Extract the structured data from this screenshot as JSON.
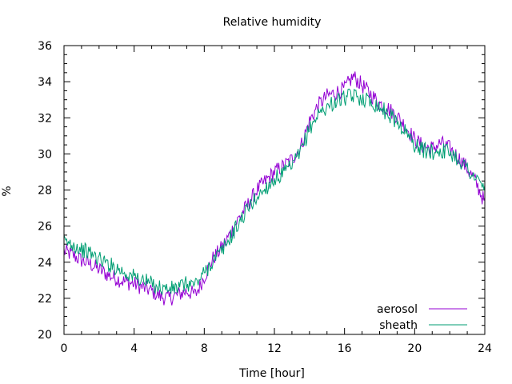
{
  "chart_data": {
    "type": "line",
    "title": "Relative humidity",
    "xlabel": "Time [hour]",
    "ylabel": "%",
    "xlim": [
      0,
      24
    ],
    "ylim": [
      20,
      36
    ],
    "xticks": [
      0,
      4,
      8,
      12,
      16,
      20,
      24
    ],
    "yticks": [
      20,
      22,
      24,
      26,
      28,
      30,
      32,
      34,
      36
    ],
    "x_minor_step": 1,
    "y_minor_step": 0.5,
    "grid": false,
    "legend_position": "bottom-right",
    "series": [
      {
        "name": "aerosol",
        "color": "#9400d3",
        "points": [
          [
            0.0,
            24.6
          ],
          [
            0.5,
            24.4
          ],
          [
            1.0,
            24.1
          ],
          [
            1.5,
            23.9
          ],
          [
            2.0,
            23.6
          ],
          [
            2.5,
            23.3
          ],
          [
            3.0,
            23.1
          ],
          [
            3.5,
            22.9
          ],
          [
            4.0,
            22.8
          ],
          [
            4.5,
            22.6
          ],
          [
            5.0,
            22.4
          ],
          [
            5.5,
            22.1
          ],
          [
            6.0,
            22.0
          ],
          [
            6.5,
            22.2
          ],
          [
            7.0,
            22.4
          ],
          [
            7.5,
            22.2
          ],
          [
            8.0,
            23.2
          ],
          [
            8.5,
            24.2
          ],
          [
            9.0,
            24.8
          ],
          [
            9.5,
            25.6
          ],
          [
            10.0,
            26.5
          ],
          [
            10.5,
            27.2
          ],
          [
            11.0,
            28.0
          ],
          [
            11.5,
            28.5
          ],
          [
            12.0,
            29.0
          ],
          [
            12.5,
            29.3
          ],
          [
            13.0,
            29.7
          ],
          [
            13.5,
            30.4
          ],
          [
            14.0,
            31.8
          ],
          [
            14.5,
            32.7
          ],
          [
            15.0,
            33.2
          ],
          [
            15.5,
            33.4
          ],
          [
            16.0,
            33.6
          ],
          [
            16.5,
            34.3
          ],
          [
            17.0,
            33.8
          ],
          [
            17.5,
            33.3
          ],
          [
            18.0,
            32.8
          ],
          [
            18.5,
            32.5
          ],
          [
            19.0,
            32.1
          ],
          [
            19.5,
            31.5
          ],
          [
            20.0,
            30.8
          ],
          [
            20.5,
            30.4
          ],
          [
            21.0,
            30.3
          ],
          [
            21.5,
            30.6
          ],
          [
            22.0,
            30.3
          ],
          [
            22.5,
            29.8
          ],
          [
            23.0,
            29.2
          ],
          [
            23.5,
            28.4
          ],
          [
            24.0,
            27.3
          ]
        ]
      },
      {
        "name": "sheath",
        "color": "#009e73",
        "points": [
          [
            0.0,
            25.1
          ],
          [
            0.5,
            25.0
          ],
          [
            1.0,
            24.7
          ],
          [
            1.5,
            24.5
          ],
          [
            2.0,
            24.2
          ],
          [
            2.5,
            23.9
          ],
          [
            3.0,
            23.7
          ],
          [
            3.5,
            23.4
          ],
          [
            4.0,
            23.2
          ],
          [
            4.5,
            23.0
          ],
          [
            5.0,
            22.8
          ],
          [
            5.5,
            22.6
          ],
          [
            6.0,
            22.5
          ],
          [
            6.5,
            22.6
          ],
          [
            7.0,
            22.8
          ],
          [
            7.5,
            22.8
          ],
          [
            8.0,
            23.4
          ],
          [
            8.5,
            24.1
          ],
          [
            9.0,
            24.6
          ],
          [
            9.5,
            25.4
          ],
          [
            10.0,
            26.2
          ],
          [
            10.5,
            27.0
          ],
          [
            11.0,
            27.6
          ],
          [
            11.5,
            28.1
          ],
          [
            12.0,
            28.6
          ],
          [
            12.5,
            28.9
          ],
          [
            13.0,
            29.3
          ],
          [
            13.5,
            30.1
          ],
          [
            14.0,
            31.4
          ],
          [
            14.5,
            32.2
          ],
          [
            15.0,
            32.6
          ],
          [
            15.5,
            32.9
          ],
          [
            16.0,
            33.1
          ],
          [
            16.5,
            33.2
          ],
          [
            17.0,
            33.1
          ],
          [
            17.5,
            32.9
          ],
          [
            18.0,
            32.6
          ],
          [
            18.5,
            32.2
          ],
          [
            19.0,
            31.8
          ],
          [
            19.5,
            31.2
          ],
          [
            20.0,
            30.5
          ],
          [
            20.5,
            30.2
          ],
          [
            21.0,
            30.1
          ],
          [
            21.5,
            30.2
          ],
          [
            22.0,
            30.1
          ],
          [
            22.5,
            29.7
          ],
          [
            23.0,
            29.2
          ],
          [
            23.5,
            28.6
          ],
          [
            24.0,
            28.1
          ]
        ]
      }
    ]
  }
}
